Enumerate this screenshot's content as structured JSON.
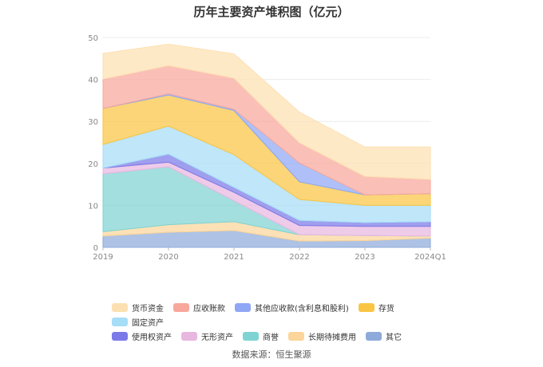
{
  "title": "历年主要资产堆积图（亿元）",
  "source": "数据来源：恒生聚源",
  "chart_data": {
    "type": "area",
    "stacked": true,
    "categories": [
      "2019",
      "2020",
      "2021",
      "2022",
      "2023",
      "2024Q1"
    ],
    "ylim": [
      0,
      50
    ],
    "yticks": [
      0,
      10,
      20,
      30,
      40,
      50
    ],
    "grid": true,
    "legend_position": "bottom",
    "series": [
      {
        "name": "其它",
        "color": "#8eaadb",
        "values": [
          2.7,
          3.6,
          4.0,
          1.5,
          1.6,
          2.2
        ]
      },
      {
        "name": "长期待摊费用",
        "color": "#fcd59a",
        "values": [
          1.0,
          1.8,
          2.1,
          1.5,
          1.2,
          0.5
        ]
      },
      {
        "name": "商誉",
        "color": "#7fd3d3",
        "values": [
          13.8,
          13.8,
          5.0,
          0.0,
          0.0,
          0.0
        ]
      },
      {
        "name": "无形资产",
        "color": "#e8b7e0",
        "values": [
          1.4,
          1.1,
          2.0,
          2.2,
          2.2,
          2.3
        ]
      },
      {
        "name": "使用权资产",
        "color": "#7b79e8",
        "values": [
          0.0,
          1.9,
          1.2,
          1.2,
          0.9,
          1.1
        ]
      },
      {
        "name": "固定资产",
        "color": "#a6ddf7",
        "values": [
          5.6,
          6.7,
          7.8,
          5.0,
          4.1,
          3.9
        ]
      },
      {
        "name": "存货",
        "color": "#f9c543",
        "values": [
          8.6,
          7.4,
          10.5,
          4.2,
          2.5,
          2.8
        ]
      },
      {
        "name": "其他应收款(含利息和股利)",
        "color": "#8fa7f4",
        "values": [
          0.0,
          0.3,
          0.3,
          4.5,
          0.0,
          0.0
        ]
      },
      {
        "name": "应收账款",
        "color": "#f8a79c",
        "values": [
          7.0,
          6.7,
          7.4,
          4.8,
          4.4,
          3.4
        ]
      },
      {
        "name": "货币资金",
        "color": "#fde0b1",
        "values": [
          6.1,
          5.1,
          5.8,
          7.3,
          7.0,
          7.7
        ]
      }
    ],
    "legend_order": [
      "货币资金",
      "应收账款",
      "其他应收款(含利息和股利)",
      "存货",
      "固定资产",
      "使用权资产",
      "无形资产",
      "商誉",
      "长期待摊费用",
      "其它"
    ]
  }
}
